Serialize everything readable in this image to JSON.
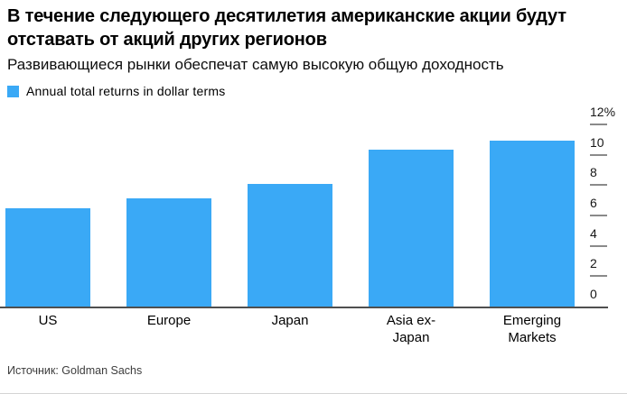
{
  "header": {
    "title": "В течение следующего десятилетия американские акции будут отставать от акций других регионов",
    "subtitle": "Развивающиеся рынки обеспечат самую высокую общую доходность"
  },
  "legend": {
    "label": "Annual total returns in dollar terms"
  },
  "chart_data": {
    "type": "bar",
    "title": "В течение следующего десятилетия американские акции будут отставать от акций других регионов",
    "subtitle": "Развивающиеся рынки обеспечат самую высокую общую доходность",
    "series_label": "Annual total returns in dollar terms",
    "categories": [
      "US",
      "Europe",
      "Japan",
      "Asia ex-Japan",
      "Emerging Markets"
    ],
    "values": [
      6.5,
      7.1,
      8.1,
      10.3,
      10.9
    ],
    "unit": "%",
    "xlabel": "",
    "ylabel": "",
    "ylim": [
      0,
      12
    ],
    "yticks": [
      0,
      2,
      4,
      6,
      8,
      10,
      12
    ],
    "ytick_labels": [
      "0",
      "2",
      "4",
      "6",
      "8",
      "10",
      "12%"
    ],
    "axis_side": "right",
    "grid": false,
    "legend_position": "top-left",
    "bar_color": "#3AA9F6"
  },
  "footer": {
    "source": "Источник: Goldman Sachs"
  },
  "colors": {
    "accent": "#3AA9F6",
    "baseline": "#4f4f4f",
    "tick": "#8a8a8a",
    "border": "#d4d4d4"
  }
}
